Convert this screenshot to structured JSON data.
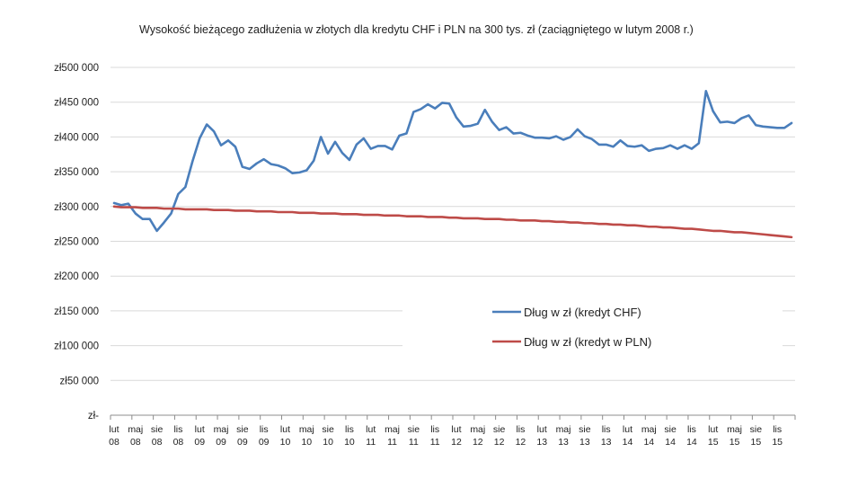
{
  "chart_data": {
    "type": "line",
    "title": "Wysokość bieżącego zadłużenia w złotych dla kredytu CHF i PLN na 300 tys. zł (zaciągniętego w lutym 2008 r.)",
    "xlabel": "",
    "ylabel": "",
    "ylim": [
      0,
      500000
    ],
    "grid": true,
    "legend_position": "center-right",
    "y_ticks": [
      "zł-",
      "zł50 000",
      "zł100 000",
      "zł150 000",
      "zł200 000",
      "zł250 000",
      "zł300 000",
      "zł350 000",
      "zł400 000",
      "zł450 000",
      "zł500 000"
    ],
    "x_tick_labels": [
      [
        "lut",
        "08"
      ],
      [
        "maj",
        "08"
      ],
      [
        "sie",
        "08"
      ],
      [
        "lis",
        "08"
      ],
      [
        "lut",
        "09"
      ],
      [
        "maj",
        "09"
      ],
      [
        "sie",
        "09"
      ],
      [
        "lis",
        "09"
      ],
      [
        "lut",
        "10"
      ],
      [
        "maj",
        "10"
      ],
      [
        "sie",
        "10"
      ],
      [
        "lis",
        "10"
      ],
      [
        "lut",
        "11"
      ],
      [
        "maj",
        "11"
      ],
      [
        "sie",
        "11"
      ],
      [
        "lis",
        "11"
      ],
      [
        "lut",
        "12"
      ],
      [
        "maj",
        "12"
      ],
      [
        "sie",
        "12"
      ],
      [
        "lis",
        "12"
      ],
      [
        "lut",
        "13"
      ],
      [
        "maj",
        "13"
      ],
      [
        "sie",
        "13"
      ],
      [
        "lis",
        "13"
      ],
      [
        "lut",
        "14"
      ],
      [
        "maj",
        "14"
      ],
      [
        "sie",
        "14"
      ],
      [
        "lis",
        "14"
      ],
      [
        "lut",
        "15"
      ],
      [
        "maj",
        "15"
      ],
      [
        "sie",
        "15"
      ],
      [
        "lis",
        "15"
      ]
    ],
    "x_start": "2008-02",
    "series": [
      {
        "name": "Dług w zł (kredyt CHF)",
        "color": "#4a7ebb",
        "values": [
          305000,
          302000,
          304000,
          290000,
          282000,
          282000,
          265000,
          277000,
          290000,
          318000,
          328000,
          365000,
          398000,
          418000,
          408000,
          388000,
          395000,
          386000,
          357000,
          354000,
          362000,
          368000,
          361000,
          359000,
          355000,
          348000,
          349000,
          352000,
          366000,
          400000,
          376000,
          393000,
          377000,
          367000,
          389000,
          398000,
          383000,
          387000,
          387000,
          382000,
          402000,
          405000,
          436000,
          440000,
          447000,
          441000,
          449000,
          448000,
          428000,
          415000,
          416000,
          419000,
          439000,
          422000,
          410000,
          414000,
          405000,
          406000,
          402000,
          399000,
          399000,
          398000,
          401000,
          396000,
          400000,
          411000,
          401000,
          397000,
          389000,
          389000,
          386000,
          395000,
          387000,
          386000,
          388000,
          380000,
          383000,
          384000,
          388000,
          383000,
          388000,
          383000,
          391000,
          466000,
          437000,
          421000,
          422000,
          420000,
          427000,
          431000,
          417000,
          415000,
          414000,
          413000,
          413000,
          420000
        ]
      },
      {
        "name": "Dług w zł (kredyt w PLN)",
        "color": "#be4b48",
        "values": [
          300000,
          299000,
          299000,
          299000,
          298000,
          298000,
          298000,
          297000,
          297000,
          297000,
          296000,
          296000,
          296000,
          296000,
          295000,
          295000,
          295000,
          294000,
          294000,
          294000,
          293000,
          293000,
          293000,
          292000,
          292000,
          292000,
          291000,
          291000,
          291000,
          290000,
          290000,
          290000,
          289000,
          289000,
          289000,
          288000,
          288000,
          288000,
          287000,
          287000,
          287000,
          286000,
          286000,
          286000,
          285000,
          285000,
          285000,
          284000,
          284000,
          283000,
          283000,
          283000,
          282000,
          282000,
          282000,
          281000,
          281000,
          280000,
          280000,
          280000,
          279000,
          279000,
          278000,
          278000,
          277000,
          277000,
          276000,
          276000,
          275000,
          275000,
          274000,
          274000,
          273000,
          273000,
          272000,
          271000,
          271000,
          270000,
          270000,
          269000,
          268000,
          268000,
          267000,
          266000,
          265000,
          265000,
          264000,
          263000,
          263000,
          262000,
          261000,
          260000,
          259000,
          258000,
          257000,
          256000
        ]
      }
    ]
  }
}
